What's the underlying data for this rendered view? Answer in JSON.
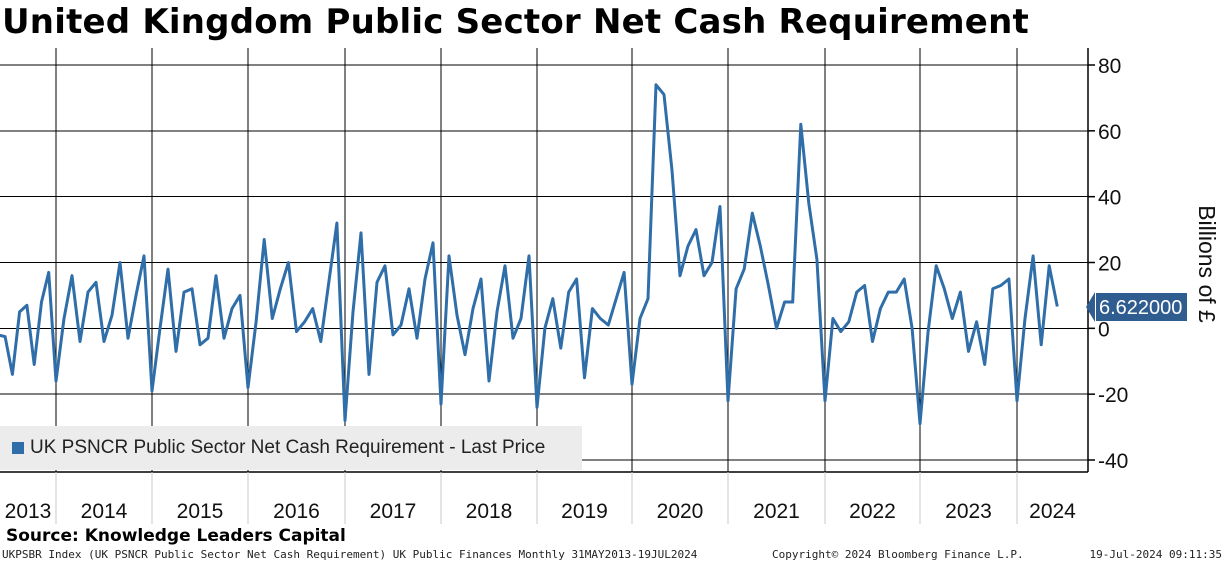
{
  "title": "United Kingdom Public Sector Net Cash Requirement",
  "ylabel": "Billions of £",
  "legend": {
    "label": "UK PSNCR Public Sector Net Cash Requirement - Last Price",
    "color": "#2f6ea8"
  },
  "last_price_label": "6.622000",
  "source": "Source: Knowledge Leaders Capital",
  "footer": {
    "left": "UKPSBR Index (UK PSNCR Public Sector Net Cash Requirement) UK Public Finances  Monthly 31MAY2013-19JUL2024",
    "middle": "Copyright© 2024 Bloomberg Finance L.P.",
    "right": "19-Jul-2024 09:11:35"
  },
  "colors": {
    "line": "#2f6ea8",
    "flag": "#2f5d8f",
    "grid": "#000000"
  },
  "chart_data": {
    "type": "line",
    "title": "United Kingdom Public Sector Net Cash Requirement",
    "ylabel": "Billions of £",
    "ylim": [
      -44,
      84
    ],
    "yticks": [
      -40,
      -20,
      0,
      20,
      40,
      60,
      80
    ],
    "x_start": "2013-05",
    "x_end": "2024-07",
    "x_year_labels": [
      "2013",
      "2014",
      "2015",
      "2016",
      "2017",
      "2018",
      "2019",
      "2020",
      "2021",
      "2022",
      "2023",
      "2024"
    ],
    "grid": true,
    "legend_position": "bottom-left",
    "series": [
      {
        "name": "UK PSNCR Public Sector Net Cash Requirement - Last Price",
        "last_value": 6.622,
        "points": [
          [
            "2013-05",
            -2
          ],
          [
            "2013-06",
            -2.5
          ],
          [
            "2013-07",
            -14
          ],
          [
            "2013-08",
            5
          ],
          [
            "2013-09",
            7
          ],
          [
            "2013-10",
            -11
          ],
          [
            "2013-11",
            8
          ],
          [
            "2013-12",
            17
          ],
          [
            "2014-01",
            -16
          ],
          [
            "2014-02",
            3
          ],
          [
            "2014-03",
            16
          ],
          [
            "2014-04",
            -4
          ],
          [
            "2014-05",
            11
          ],
          [
            "2014-06",
            14
          ],
          [
            "2014-07",
            -4
          ],
          [
            "2014-08",
            4
          ],
          [
            "2014-09",
            20
          ],
          [
            "2014-10",
            -3
          ],
          [
            "2014-11",
            10
          ],
          [
            "2014-12",
            22
          ],
          [
            "2015-01",
            -19
          ],
          [
            "2015-02",
            0
          ],
          [
            "2015-03",
            18
          ],
          [
            "2015-04",
            -7
          ],
          [
            "2015-05",
            11
          ],
          [
            "2015-06",
            12
          ],
          [
            "2015-07",
            -5
          ],
          [
            "2015-08",
            -3
          ],
          [
            "2015-09",
            16
          ],
          [
            "2015-10",
            -3
          ],
          [
            "2015-11",
            6
          ],
          [
            "2015-12",
            10
          ],
          [
            "2016-01",
            -18
          ],
          [
            "2016-02",
            2
          ],
          [
            "2016-03",
            27
          ],
          [
            "2016-04",
            3
          ],
          [
            "2016-05",
            12
          ],
          [
            "2016-06",
            20
          ],
          [
            "2016-07",
            -1
          ],
          [
            "2016-08",
            2
          ],
          [
            "2016-09",
            6
          ],
          [
            "2016-10",
            -4
          ],
          [
            "2016-11",
            14
          ],
          [
            "2016-12",
            32
          ],
          [
            "2017-01",
            -28
          ],
          [
            "2017-02",
            5
          ],
          [
            "2017-03",
            29
          ],
          [
            "2017-04",
            -14
          ],
          [
            "2017-05",
            14
          ],
          [
            "2017-06",
            19
          ],
          [
            "2017-07",
            -2
          ],
          [
            "2017-08",
            1
          ],
          [
            "2017-09",
            12
          ],
          [
            "2017-10",
            -3
          ],
          [
            "2017-11",
            15
          ],
          [
            "2017-12",
            26
          ],
          [
            "2018-01",
            -23
          ],
          [
            "2018-02",
            22
          ],
          [
            "2018-03",
            4
          ],
          [
            "2018-04",
            -8
          ],
          [
            "2018-05",
            6
          ],
          [
            "2018-06",
            15
          ],
          [
            "2018-07",
            -16
          ],
          [
            "2018-08",
            5
          ],
          [
            "2018-09",
            19
          ],
          [
            "2018-10",
            -3
          ],
          [
            "2018-11",
            3
          ],
          [
            "2018-12",
            22
          ],
          [
            "2019-01",
            -24
          ],
          [
            "2019-02",
            0
          ],
          [
            "2019-03",
            9
          ],
          [
            "2019-04",
            -6
          ],
          [
            "2019-05",
            11
          ],
          [
            "2019-06",
            15
          ],
          [
            "2019-07",
            -15
          ],
          [
            "2019-08",
            6
          ],
          [
            "2019-09",
            3
          ],
          [
            "2019-10",
            1
          ],
          [
            "2019-11",
            9
          ],
          [
            "2019-12",
            17
          ],
          [
            "2020-01",
            -17
          ],
          [
            "2020-02",
            3
          ],
          [
            "2020-03",
            9
          ],
          [
            "2020-04",
            74
          ],
          [
            "2020-05",
            71
          ],
          [
            "2020-06",
            48
          ],
          [
            "2020-07",
            16
          ],
          [
            "2020-08",
            25
          ],
          [
            "2020-09",
            30
          ],
          [
            "2020-10",
            16
          ],
          [
            "2020-11",
            20
          ],
          [
            "2020-12",
            37
          ],
          [
            "2021-01",
            -22
          ],
          [
            "2021-02",
            12
          ],
          [
            "2021-03",
            18
          ],
          [
            "2021-04",
            35
          ],
          [
            "2021-05",
            25
          ],
          [
            "2021-06",
            13
          ],
          [
            "2021-07",
            0
          ],
          [
            "2021-08",
            8
          ],
          [
            "2021-09",
            8
          ],
          [
            "2021-10",
            62
          ],
          [
            "2021-11",
            38
          ],
          [
            "2021-12",
            21
          ],
          [
            "2022-01",
            -22
          ],
          [
            "2022-02",
            3
          ],
          [
            "2022-03",
            -1
          ],
          [
            "2022-04",
            2
          ],
          [
            "2022-05",
            11
          ],
          [
            "2022-06",
            13
          ],
          [
            "2022-07",
            -4
          ],
          [
            "2022-08",
            6
          ],
          [
            "2022-09",
            11
          ],
          [
            "2022-10",
            11
          ],
          [
            "2022-11",
            15
          ],
          [
            "2022-12",
            0
          ],
          [
            "2023-01",
            -29
          ],
          [
            "2023-02",
            -1
          ],
          [
            "2023-03",
            19
          ],
          [
            "2023-04",
            12
          ],
          [
            "2023-05",
            3
          ],
          [
            "2023-06",
            11
          ],
          [
            "2023-07",
            -7
          ],
          [
            "2023-08",
            2
          ],
          [
            "2023-09",
            -11
          ],
          [
            "2023-10",
            12
          ],
          [
            "2023-11",
            13
          ],
          [
            "2023-12",
            15
          ],
          [
            "2024-01",
            -22
          ],
          [
            "2024-02",
            3
          ],
          [
            "2024-03",
            22
          ],
          [
            "2024-04",
            -5
          ],
          [
            "2024-05",
            19
          ],
          [
            "2024-06",
            6.622
          ]
        ]
      }
    ]
  }
}
